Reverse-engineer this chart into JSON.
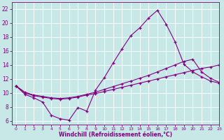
{
  "xlabel": "Windchill (Refroidissement éolien,°C)",
  "ylabel": "",
  "bg_color": "#c8e8e8",
  "line_color": "#800080",
  "xlim": [
    -0.5,
    23
  ],
  "ylim": [
    5.5,
    23
  ],
  "xticks": [
    0,
    1,
    2,
    3,
    4,
    5,
    6,
    7,
    8,
    9,
    10,
    11,
    12,
    13,
    14,
    15,
    16,
    17,
    18,
    19,
    20,
    21,
    22,
    23
  ],
  "yticks": [
    6,
    8,
    10,
    12,
    14,
    16,
    18,
    20,
    22
  ],
  "curve1_x": [
    0,
    1,
    2,
    3,
    4,
    5,
    6,
    7,
    8,
    9,
    10,
    11,
    12,
    13,
    14,
    15,
    16,
    17,
    18,
    19,
    20,
    21,
    22,
    23
  ],
  "curve1_y": [
    11,
    9.8,
    9.3,
    8.7,
    6.8,
    6.3,
    6.1,
    7.9,
    7.4,
    10.4,
    12.2,
    14.3,
    16.3,
    18.2,
    19.3,
    20.7,
    21.8,
    19.8,
    17.3,
    14.1,
    13.0,
    12.3,
    11.7,
    11.4
  ],
  "curve2_x": [
    0,
    1,
    2,
    3,
    4,
    5,
    6,
    7,
    8,
    9,
    10,
    11,
    12,
    13,
    14,
    15,
    16,
    17,
    18,
    19,
    20,
    21,
    22,
    23
  ],
  "curve2_y": [
    11,
    10.1,
    9.7,
    9.5,
    9.3,
    9.2,
    9.3,
    9.5,
    9.8,
    10.1,
    10.5,
    10.9,
    11.3,
    11.7,
    12.1,
    12.5,
    13.0,
    13.5,
    14.0,
    14.5,
    14.8,
    13.0,
    12.1,
    11.5
  ],
  "curve3_x": [
    0,
    1,
    2,
    3,
    4,
    5,
    6,
    7,
    8,
    9,
    10,
    11,
    12,
    13,
    14,
    15,
    16,
    17,
    18,
    19,
    20,
    21,
    22,
    23
  ],
  "curve3_y": [
    11,
    10.0,
    9.6,
    9.4,
    9.2,
    9.1,
    9.2,
    9.4,
    9.7,
    9.9,
    10.2,
    10.5,
    10.8,
    11.1,
    11.4,
    11.7,
    12.0,
    12.3,
    12.6,
    12.9,
    13.2,
    13.5,
    13.7,
    14.0
  ]
}
